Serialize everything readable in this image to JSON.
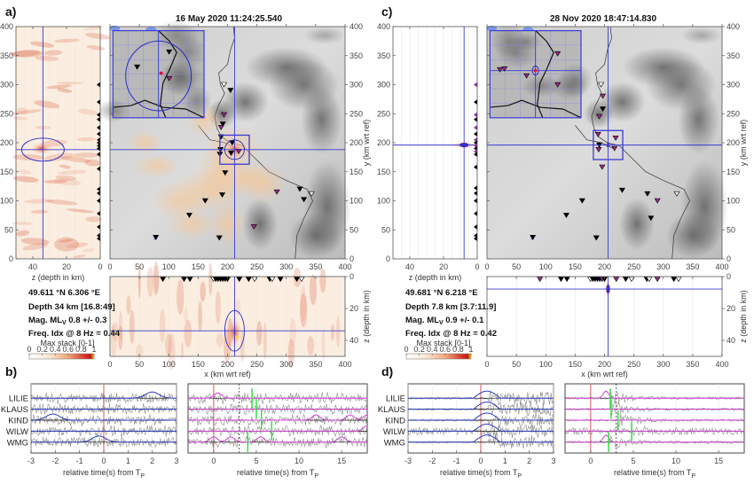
{
  "figure": {
    "panels": {
      "a": {
        "letter": "a)",
        "title": "16 May 2020 11:24:25.540"
      },
      "b": {
        "letter": "b)"
      },
      "c": {
        "letter": "c)",
        "title": "28 Nov 2020 18:47:14.830"
      },
      "d": {
        "letter": "d)"
      }
    },
    "colors": {
      "cross": "#3a3ad6",
      "ellipse": "#2b2bc8",
      "trace_blue": "#2b3bbf",
      "trace_magenta": "#d23fd2",
      "pick_green": "#33dd44",
      "tp_line": "#e07070",
      "trace_grey": "#666666",
      "heat_low": "#fdf3e6",
      "heat_high": "#c81e1e"
    }
  },
  "chart_data": [
    {
      "id": "a-map",
      "type": "heatmap",
      "title": "16 May 2020 11:24:25.540",
      "xlabel": "x (km wrt ref)",
      "ylabel": "y (km wrt ref)",
      "xlim": [
        0,
        400
      ],
      "ylim": [
        0,
        400
      ],
      "xticks": [
        "0",
        "50",
        "100",
        "150",
        "200",
        "250",
        "300",
        "350",
        "400"
      ],
      "yticks": [
        "0",
        "50",
        "100",
        "150",
        "200",
        "250",
        "300",
        "350",
        "400"
      ],
      "epicenter": {
        "x": 212,
        "y": 188
      },
      "stations_black": [
        [
          78,
          37
        ],
        [
          135,
          75
        ],
        [
          162,
          100
        ],
        [
          186,
          36
        ],
        [
          191,
          110
        ],
        [
          196,
          148
        ],
        [
          188,
          188
        ],
        [
          187,
          180
        ],
        [
          189,
          210
        ],
        [
          206,
          182
        ],
        [
          208,
          200
        ],
        [
          192,
          232
        ],
        [
          205,
          290
        ],
        [
          323,
          120
        ],
        [
          330,
          102
        ]
      ],
      "stations_magenta": [
        [
          194,
          248
        ],
        [
          189,
          226
        ],
        [
          219,
          185
        ],
        [
          245,
          55
        ],
        [
          284,
          115
        ]
      ],
      "stations_open": [
        [
          194,
          300
        ],
        [
          343,
          112
        ]
      ]
    },
    {
      "id": "a-depth-y",
      "type": "heatmap",
      "xlabel": "z (depth in km)",
      "xticks": [
        "40",
        "20",
        "0"
      ],
      "yticks": [
        "0",
        "50",
        "100",
        "150",
        "200",
        "250",
        "300",
        "350",
        "400"
      ],
      "xlim": [
        50,
        0
      ],
      "ylim": [
        0,
        400
      ],
      "hypocenter": {
        "z": 34,
        "y": 188
      }
    },
    {
      "id": "a-depth-x",
      "type": "heatmap",
      "xlabel": "x (km wrt ref)",
      "ylabel": "z (depth in km)",
      "xticks": [
        "0",
        "50",
        "100",
        "150",
        "200",
        "250",
        "300",
        "350",
        "400"
      ],
      "yticks": [
        "0",
        "20",
        "40"
      ],
      "xlim": [
        0,
        400
      ],
      "ylim": [
        50,
        0
      ],
      "hypocenter": {
        "x": 212,
        "z": 34
      }
    },
    {
      "id": "c-map",
      "type": "heatmap",
      "title": "28 Nov 2020 18:47:14.830",
      "xlabel": "x (km wrt ref)",
      "ylabel": "y (km wrt ref)",
      "xlim": [
        0,
        400
      ],
      "ylim": [
        0,
        400
      ],
      "xticks": [
        "0",
        "50",
        "100",
        "150",
        "200",
        "250",
        "300",
        "350",
        "400"
      ],
      "yticks": [
        "0",
        "50",
        "100",
        "150",
        "200",
        "250",
        "300",
        "350",
        "400"
      ],
      "epicenter": {
        "x": 206,
        "y": 196
      },
      "stations_black": [
        [
          78,
          37
        ],
        [
          135,
          75
        ],
        [
          162,
          100
        ],
        [
          186,
          36
        ],
        [
          191,
          196
        ],
        [
          197,
          258
        ],
        [
          230,
          118
        ],
        [
          273,
          112
        ],
        [
          279,
          70
        ]
      ],
      "stations_magenta": [
        [
          189,
          214
        ],
        [
          191,
          245
        ],
        [
          190,
          188
        ],
        [
          219,
          208
        ],
        [
          217,
          190
        ],
        [
          197,
          280
        ],
        [
          196,
          158
        ],
        [
          290,
          100
        ]
      ],
      "stations_open": [
        [
          194,
          300
        ],
        [
          323,
          112
        ]
      ]
    },
    {
      "id": "c-depth-y",
      "type": "heatmap",
      "xlabel": "z (depth in km)",
      "xticks": [
        "40",
        "20",
        "0"
      ],
      "yticks": [
        "0",
        "50",
        "100",
        "150",
        "200",
        "250",
        "300",
        "350",
        "400"
      ],
      "xlim": [
        50,
        0
      ],
      "ylim": [
        0,
        400
      ],
      "hypocenter": {
        "z": 7.8,
        "y": 196
      }
    },
    {
      "id": "c-depth-x",
      "type": "heatmap",
      "xlabel": "x (km wrt ref)",
      "ylabel": "z (depth in km)",
      "xticks": [
        "0",
        "50",
        "100",
        "150",
        "200",
        "250",
        "300",
        "350",
        "400"
      ],
      "yticks": [
        "0",
        "20",
        "40"
      ],
      "xlim": [
        0,
        400
      ],
      "ylim": [
        50,
        0
      ],
      "hypocenter": {
        "x": 206,
        "z": 7.8
      }
    },
    {
      "id": "b-short",
      "type": "line",
      "xlabel": "relative time(s) from T",
      "xlabel_sub": "P",
      "xlim": [
        -3,
        3
      ],
      "xticks": [
        "-3",
        "-2",
        "-1",
        "0",
        "1",
        "2",
        "3"
      ],
      "stations": [
        "LILIE",
        "KLAUS",
        "KIND",
        "WILW",
        "WMG"
      ],
      "cf_peak_times": [
        2.0,
        null,
        -2.1,
        null,
        -0.2
      ]
    },
    {
      "id": "b-long",
      "type": "line",
      "xlabel": "relative time(s) from T",
      "xlabel_sub": "P",
      "xlim": [
        -3,
        18
      ],
      "xticks": [
        "0",
        "5",
        "10",
        "15"
      ],
      "stations": [
        "LILIE",
        "KLAUS",
        "KIND",
        "WILW",
        "WMG"
      ],
      "green_picks": [
        4.5,
        5.0,
        5.6,
        6.8,
        4.0
      ]
    },
    {
      "id": "d-short",
      "type": "line",
      "xlabel": "relative time(s) from T",
      "xlabel_sub": "P",
      "xlim": [
        -3,
        3
      ],
      "xticks": [
        "-3",
        "-2",
        "-1",
        "0",
        "1",
        "2",
        "3"
      ],
      "stations": [
        "LILIE",
        "KLAUS",
        "KIND",
        "WILW",
        "WMG"
      ],
      "cf_peak_times": [
        0.3,
        0.3,
        0.3,
        0.3,
        0.3
      ]
    },
    {
      "id": "d-long",
      "type": "line",
      "xlabel": "relative time(s) from T",
      "xlabel_sub": "P",
      "xlim": [
        -3,
        18
      ],
      "xticks": [
        "0",
        "5",
        "10",
        "15"
      ],
      "stations": [
        "LILIE",
        "KLAUS",
        "KIND",
        "WILW",
        "WMG"
      ],
      "green_picks": [
        2.3,
        2.4,
        3.2,
        4.8,
        2.1
      ]
    }
  ],
  "info_a": {
    "coords": "49.611 °N 6.306 °E",
    "depth": "Depth 34 km [16.8:49]",
    "mag_prefix": "Mag. ML",
    "mag_sub": "V",
    "mag_value": " 0.8 +/- 0.3",
    "freq": "Freq. Idx @ 8 Hz = 0.44",
    "colorbar_title": "Max stack [0-1]",
    "colorbar_ticks": [
      "0",
      "0.2",
      "0.4",
      "0.6",
      "0.8",
      "1"
    ]
  },
  "info_c": {
    "coords": "49.681 °N 6.218 °E",
    "depth": "Depth 7.8 km [3.7:11.9]",
    "mag_prefix": "Mag. ML",
    "mag_sub": "V",
    "mag_value": " 0.9 +/- 0.1",
    "freq": "Freq. Idx @ 8 Hz = 0.42",
    "colorbar_title": "Max stack [0-1]",
    "colorbar_ticks": [
      "0",
      "0.2",
      "0.4",
      "0.6",
      "0.8",
      "1"
    ]
  }
}
